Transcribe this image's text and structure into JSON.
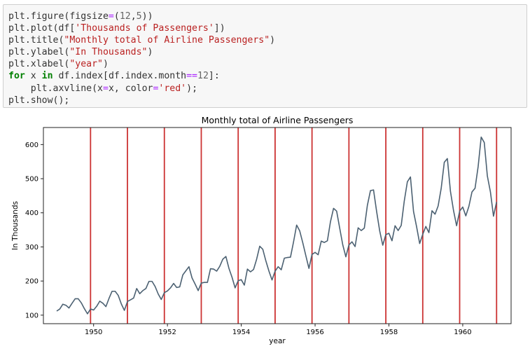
{
  "code_cell": {
    "lines": [
      [
        {
          "t": "plt.figure(figsize",
          "c": "fn"
        },
        {
          "t": "=",
          "c": "op"
        },
        {
          "t": "(",
          "c": "fn"
        },
        {
          "t": "12",
          "c": "num"
        },
        {
          "t": ",",
          "c": "fn"
        },
        {
          "t": "5",
          "c": "num"
        },
        {
          "t": "))",
          "c": "fn"
        }
      ],
      [
        {
          "t": "plt.plot(df[",
          "c": "fn"
        },
        {
          "t": "'Thousands of Passengers'",
          "c": "str"
        },
        {
          "t": "])",
          "c": "fn"
        }
      ],
      [
        {
          "t": "plt.title(",
          "c": "fn"
        },
        {
          "t": "\"Monthly total of Airline Passengers\"",
          "c": "str"
        },
        {
          "t": ")",
          "c": "fn"
        }
      ],
      [
        {
          "t": "plt.ylabel(",
          "c": "fn"
        },
        {
          "t": "\"In Thousands\"",
          "c": "str"
        },
        {
          "t": ")",
          "c": "fn"
        }
      ],
      [
        {
          "t": "plt.xlabel(",
          "c": "fn"
        },
        {
          "t": "\"year\"",
          "c": "str"
        },
        {
          "t": ")",
          "c": "fn"
        }
      ],
      [
        {
          "t": "for",
          "c": "kw"
        },
        {
          "t": " x ",
          "c": "fn"
        },
        {
          "t": "in",
          "c": "kw"
        },
        {
          "t": " df.index[df.index.month",
          "c": "fn"
        },
        {
          "t": "==",
          "c": "op"
        },
        {
          "t": "12",
          "c": "num"
        },
        {
          "t": "]:",
          "c": "fn"
        }
      ],
      [
        {
          "t": "    plt.axvline(x",
          "c": "fn"
        },
        {
          "t": "=",
          "c": "op"
        },
        {
          "t": "x, color",
          "c": "fn"
        },
        {
          "t": "=",
          "c": "op"
        },
        {
          "t": "'red'",
          "c": "str"
        },
        {
          "t": ");",
          "c": "fn"
        }
      ],
      [
        {
          "t": "plt.show();",
          "c": "fn"
        }
      ]
    ]
  },
  "colors": {
    "line": "#4c6172",
    "vline": "#cc3333",
    "axis": "#222222"
  },
  "chart_data": {
    "type": "line",
    "title": "Monthly total of Airline Passengers",
    "xlabel": "year",
    "ylabel": "In Thousands",
    "x_start": "1949-01",
    "xlim": [
      1948.64,
      1961.31
    ],
    "ylim": [
      75,
      650
    ],
    "xticks": [
      1950,
      1952,
      1954,
      1956,
      1958,
      1960
    ],
    "yticks": [
      100,
      200,
      300,
      400,
      500,
      600
    ],
    "vlines": [
      "1949-12",
      "1950-12",
      "1951-12",
      "1952-12",
      "1953-12",
      "1954-12",
      "1955-12",
      "1956-12",
      "1957-12",
      "1958-12",
      "1959-12",
      "1960-12"
    ],
    "values": [
      112,
      118,
      132,
      129,
      121,
      135,
      148,
      148,
      136,
      119,
      104,
      118,
      115,
      126,
      141,
      135,
      125,
      149,
      170,
      170,
      158,
      133,
      114,
      140,
      145,
      150,
      178,
      163,
      172,
      178,
      199,
      199,
      184,
      162,
      146,
      166,
      171,
      180,
      193,
      181,
      183,
      218,
      230,
      242,
      209,
      191,
      172,
      194,
      196,
      196,
      236,
      235,
      229,
      243,
      264,
      272,
      237,
      211,
      180,
      201,
      204,
      188,
      235,
      227,
      234,
      264,
      302,
      293,
      259,
      229,
      203,
      229,
      242,
      233,
      267,
      269,
      270,
      315,
      364,
      347,
      312,
      274,
      237,
      278,
      284,
      277,
      317,
      313,
      318,
      374,
      413,
      405,
      355,
      306,
      271,
      306,
      315,
      301,
      356,
      348,
      355,
      422,
      465,
      467,
      404,
      347,
      305,
      336,
      340,
      318,
      362,
      348,
      363,
      435,
      491,
      505,
      404,
      359,
      310,
      337,
      360,
      342,
      406,
      396,
      420,
      472,
      548,
      559,
      463,
      407,
      362,
      405,
      417,
      391,
      419,
      461,
      472,
      535,
      622,
      606,
      508,
      461,
      390,
      432
    ]
  }
}
